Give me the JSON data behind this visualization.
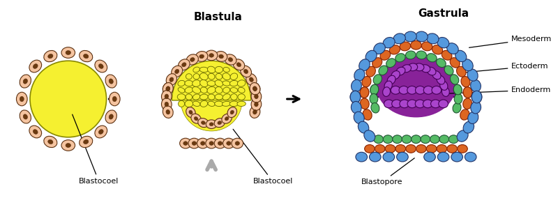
{
  "bg_color": "#ffffff",
  "cell_peach": "#f5c4a0",
  "cell_outline": "#5c3010",
  "nucleus_dark": "#6b3a10",
  "yellow": "#f5f030",
  "yellow_outline": "#888800",
  "blue_cell": "#5599dd",
  "blue_outline": "#223366",
  "orange_cell": "#dd6622",
  "orange_outline": "#882200",
  "green_cell": "#55bb66",
  "green_outline": "#225533",
  "purple_fill": "#882299",
  "purple_outline": "#440055",
  "purple_dark": "#660088",
  "gray_arrow": "#aaaaaa",
  "black": "#111111",
  "title1": "Blastula",
  "title2": "Gastrula",
  "lbl_blastocoel1": "Blastocoel",
  "lbl_blastocoel2": "Blastocoel",
  "lbl_blastopore": "Blastopore",
  "lbl_mesoderm": "Mesoderm",
  "lbl_ectoderm": "Ectoderm",
  "lbl_endoderm": "Endoderm"
}
